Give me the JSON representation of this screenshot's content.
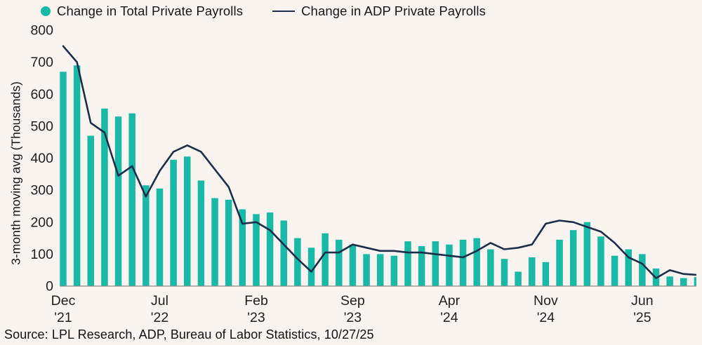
{
  "legend": {
    "series": [
      {
        "label": "Change in Total Private Payrolls",
        "marker": "dot"
      },
      {
        "label": "Change in ADP Private Payrolls",
        "marker": "line"
      }
    ]
  },
  "y_axis": {
    "title": "3-month moving avg (Thousands)",
    "ticks": [
      0,
      100,
      200,
      300,
      400,
      500,
      600,
      700,
      800
    ]
  },
  "x_axis": {
    "ticks": [
      {
        "month": "Dec",
        "year": "'21",
        "index": 0
      },
      {
        "month": "Jul",
        "year": "'22",
        "index": 7
      },
      {
        "month": "Feb",
        "year": "'23",
        "index": 14
      },
      {
        "month": "Sep",
        "year": "'23",
        "index": 21
      },
      {
        "month": "Apr",
        "year": "'24",
        "index": 28
      },
      {
        "month": "Nov",
        "year": "'24",
        "index": 35
      },
      {
        "month": "Jun",
        "year": "'25",
        "index": 42
      }
    ]
  },
  "source": "Source: LPL Research, ADP, Bureau of Labor Statistics, 10/27/25",
  "colors": {
    "bar": "#19B9A8",
    "line": "#1C2E4A",
    "background": "#FAF4F1",
    "axis": "#8C8C8C",
    "text": "#1f1f1f"
  },
  "chart_data": {
    "type": "combo",
    "categories": [
      "Dec '21",
      "Jan '22",
      "Feb '22",
      "Mar '22",
      "Apr '22",
      "May '22",
      "Jun '22",
      "Jul '22",
      "Aug '22",
      "Sep '22",
      "Oct '22",
      "Nov '22",
      "Dec '22",
      "Jan '23",
      "Feb '23",
      "Mar '23",
      "Apr '23",
      "May '23",
      "Jun '23",
      "Jul '23",
      "Aug '23",
      "Sep '23",
      "Oct '23",
      "Nov '23",
      "Dec '23",
      "Jan '24",
      "Feb '24",
      "Mar '24",
      "Apr '24",
      "May '24",
      "Jun '24",
      "Jul '24",
      "Aug '24",
      "Sep '24",
      "Oct '24",
      "Nov '24",
      "Dec '24",
      "Jan '25",
      "Feb '25",
      "Mar '25",
      "Apr '25",
      "May '25",
      "Jun '25",
      "Jul '25",
      "Aug '25",
      "Sep '25",
      "Oct '25"
    ],
    "series": [
      {
        "name": "Change in Total Private Payrolls",
        "type": "bar",
        "values": [
          670,
          690,
          470,
          555,
          530,
          540,
          315,
          305,
          395,
          405,
          330,
          275,
          270,
          240,
          225,
          230,
          205,
          150,
          120,
          165,
          145,
          130,
          100,
          100,
          95,
          140,
          125,
          140,
          130,
          145,
          150,
          115,
          85,
          45,
          90,
          75,
          145,
          175,
          200,
          155,
          95,
          115,
          100,
          55,
          30,
          25,
          28
        ]
      },
      {
        "name": "Change in ADP Private Payrolls",
        "type": "line",
        "values": [
          750,
          700,
          510,
          480,
          345,
          375,
          280,
          360,
          420,
          440,
          420,
          365,
          310,
          195,
          200,
          175,
          130,
          85,
          45,
          105,
          105,
          130,
          120,
          110,
          110,
          105,
          105,
          100,
          95,
          90,
          110,
          135,
          115,
          120,
          130,
          195,
          205,
          200,
          185,
          170,
          135,
          90,
          70,
          25,
          50,
          38,
          35
        ]
      }
    ],
    "title": "",
    "xlabel": "",
    "ylabel": "3-month moving avg (Thousands)",
    "ylim": [
      0,
      800
    ],
    "grid": false,
    "legend_position": "top-left"
  }
}
